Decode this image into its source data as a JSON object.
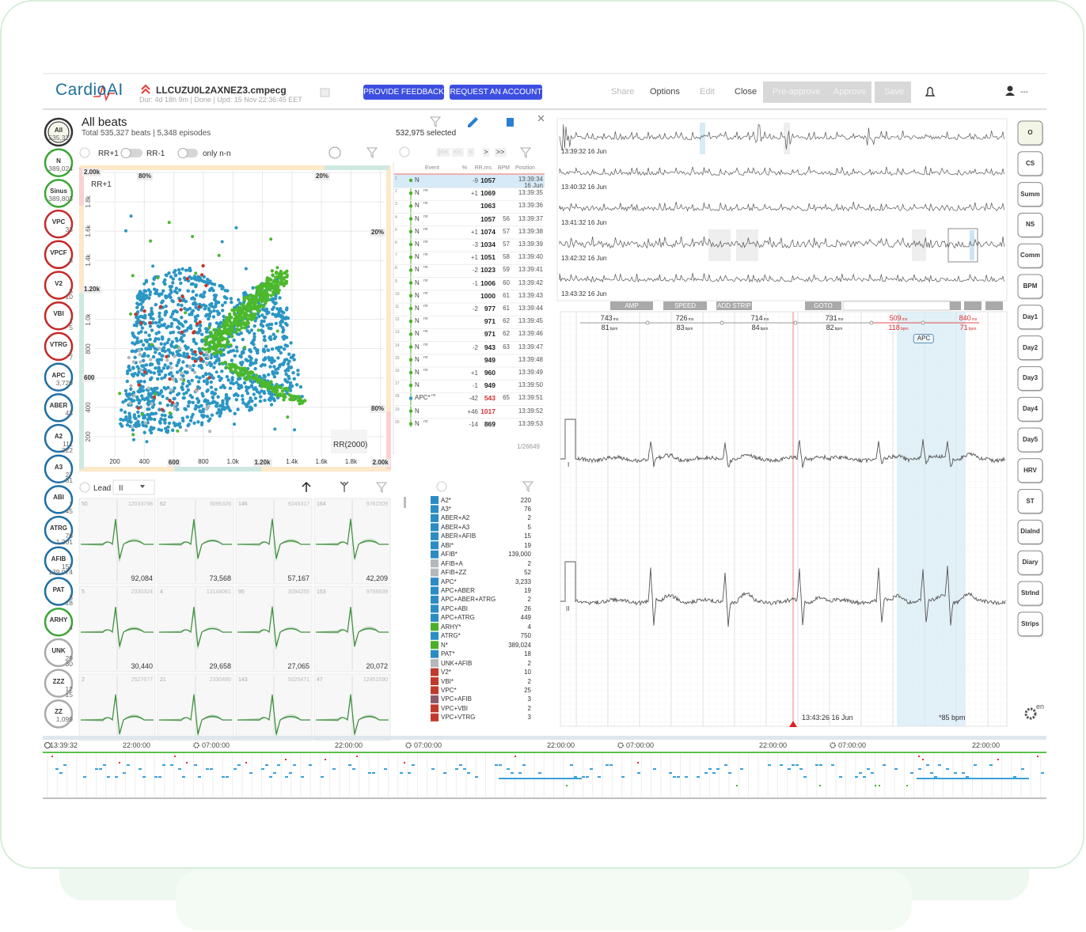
{
  "header": {
    "logo": "CardioAI",
    "file": "LLCUZU0L2AXNEZ3.cmpecg",
    "meta": "Dur: 4d 18h 9m  |  Done  |  Upd: 15 Nov 22:36:45 EET",
    "buttons": [
      "PROVIDE FEEDBACK",
      "REQUEST AN ACCOUNT"
    ],
    "menu": [
      {
        "text": "Share",
        "enabled": false
      },
      {
        "text": "Options",
        "enabled": true
      },
      {
        "text": "Edit",
        "enabled": false
      },
      {
        "text": "Close",
        "enabled": true
      }
    ],
    "approve": [
      "Pre-approve",
      "Approve",
      "Save"
    ],
    "user": "---"
  },
  "sidebar": [
    {
      "label": "All",
      "counts": [
        "535,327"
      ],
      "color": "#333333"
    },
    {
      "label": "N",
      "counts": [
        "389,024"
      ],
      "color": "#3aa635"
    },
    {
      "label": "Sinus",
      "counts": [
        "389,803"
      ],
      "color": "#3aa635"
    },
    {
      "label": "VPC",
      "counts": [
        "33"
      ],
      "color": "#c62828"
    },
    {
      "label": "VPCF",
      "counts": [
        "8"
      ],
      "color": "#c62828"
    },
    {
      "label": "V2",
      "counts": [
        "5",
        "10"
      ],
      "color": "#c62828"
    },
    {
      "label": "VBI",
      "counts": [
        "1",
        "5"
      ],
      "color": "#c62828"
    },
    {
      "label": "VTRG",
      "counts": [
        "1",
        "7"
      ],
      "color": "#c62828"
    },
    {
      "label": "APC",
      "counts": [
        "3,729"
      ],
      "color": "#1f6fa5"
    },
    {
      "label": "ABER",
      "counts": [
        "43"
      ],
      "color": "#1f6fa5"
    },
    {
      "label": "A2",
      "counts": [
        "111",
        "222"
      ],
      "color": "#1f6fa5"
    },
    {
      "label": "A3",
      "counts": [
        "27",
        "81"
      ],
      "color": "#1f6fa5"
    },
    {
      "label": "ABI",
      "counts": [
        "7",
        "45"
      ],
      "color": "#1f6fa5"
    },
    {
      "label": "ATRG",
      "counts": [
        "76",
        "1,201"
      ],
      "color": "#1f6fa5"
    },
    {
      "label": "AFIB",
      "counts": [
        "157",
        "139,074"
      ],
      "color": "#1f6fa5"
    },
    {
      "label": "PAT",
      "counts": [
        "3",
        "18"
      ],
      "color": "#1f6fa5"
    },
    {
      "label": "ARHY",
      "counts": [
        "4"
      ],
      "color": "#3aa635"
    },
    {
      "label": "UNK",
      "counts": [
        "29",
        "30"
      ],
      "color": "#aaaaaa"
    },
    {
      "label": "ZZZ",
      "counts": [
        "12",
        "15"
      ],
      "color": "#aaaaaa"
    },
    {
      "label": "ZZ",
      "counts": [
        "1,099"
      ],
      "color": "#aaaaaa"
    }
  ],
  "panel": {
    "title": "All beats",
    "summary": "Total 535,327 beats | 5,348 episodes",
    "selected": "532,975 selected",
    "toggles": [
      "RR+1",
      "RR-1",
      "only n-n"
    ]
  },
  "scatter": {
    "y_label": "RR+1",
    "x_label": "RR(2000)",
    "yticks": [
      "2.00k",
      "1.8k",
      "1.6k",
      "1.4k",
      "1.20k",
      "1.0k",
      "800",
      "600",
      "400",
      "200"
    ],
    "y_boxed": [
      0,
      4,
      7
    ],
    "xticks": [
      "200",
      "400",
      "600",
      "800",
      "1.0k",
      "1.20k",
      "1.4k",
      "1.6k",
      "1.8k",
      "2.00k"
    ],
    "x_boxed": [
      2,
      5,
      9
    ],
    "corner_labels": [
      "80%",
      "20%",
      "20%",
      "80%"
    ]
  },
  "beats": {
    "pager": [
      "|<<",
      "<<",
      "<",
      ">",
      ">>"
    ],
    "headers": [
      "Event",
      "%",
      "RR,ms",
      "BPM",
      "Position"
    ],
    "rows": [
      {
        "n": "1",
        "ev": "N",
        "d": "-9",
        "rr": "1057",
        "time": "13:39:34",
        "date": "16 Jun"
      },
      {
        "n": "2",
        "ev": "N",
        "tag": "nn",
        "d": "+1",
        "rr": "1069",
        "time": "13:39:35"
      },
      {
        "n": "3",
        "ev": "N",
        "tag": "nn",
        "rr": "1063",
        "time": "13:39:36"
      },
      {
        "n": "4",
        "ev": "N",
        "tag": "nn",
        "rr": "1057",
        "bpm": "56",
        "time": "13:39:37"
      },
      {
        "n": "5",
        "ev": "N",
        "tag": "nn",
        "d": "+1",
        "rr": "1074",
        "bpm": "57",
        "time": "13:39:38"
      },
      {
        "n": "6",
        "ev": "N",
        "tag": "nn",
        "d": "-3",
        "rr": "1034",
        "bpm": "57",
        "time": "13:39:39"
      },
      {
        "n": "7",
        "ev": "N",
        "tag": "nn",
        "d": "+1",
        "rr": "1051",
        "bpm": "58",
        "time": "13:39:40"
      },
      {
        "n": "8",
        "ev": "N",
        "tag": "nn",
        "d": "-2",
        "rr": "1023",
        "bpm": "59",
        "time": "13:39:41"
      },
      {
        "n": "9",
        "ev": "N",
        "tag": "nn",
        "d": "-1",
        "rr": "1006",
        "bpm": "60",
        "time": "13:39:42"
      },
      {
        "n": "10",
        "ev": "N",
        "tag": "nn",
        "rr": "1000",
        "bpm": "61",
        "time": "13:39:43"
      },
      {
        "n": "11",
        "ev": "N",
        "tag": "nn",
        "d": "-2",
        "rr": "977",
        "bpm": "61",
        "time": "13:39:44"
      },
      {
        "n": "12",
        "ev": "N",
        "tag": "nn",
        "rr": "971",
        "bpm": "62",
        "time": "13:39:45"
      },
      {
        "n": "13",
        "ev": "N",
        "tag": "nn",
        "rr": "971",
        "bpm": "62",
        "time": "13:39:46"
      },
      {
        "n": "14",
        "ev": "N",
        "tag": "nn",
        "d": "-2",
        "rr": "943",
        "bpm": "63",
        "time": "13:39:47"
      },
      {
        "n": "15",
        "ev": "N",
        "tag": "nn",
        "rr": "949",
        "time": "13:39:48"
      },
      {
        "n": "16",
        "ev": "N",
        "tag": "nn",
        "d": "+1",
        "rr": "960",
        "time": "13:39:49"
      },
      {
        "n": "17",
        "ev": "N",
        "d": "-1",
        "rr": "949",
        "time": "13:39:50"
      },
      {
        "n": "18",
        "ev": "APC*",
        "tag": "nn",
        "d": "-42",
        "rr": "543",
        "bpm": "65",
        "time": "13:39:51",
        "alert": true
      },
      {
        "n": "19",
        "ev": "N",
        "d": "+46",
        "rr": "1017",
        "time": "13:39:52",
        "alert": true
      },
      {
        "n": "20",
        "ev": "N",
        "tag": "nn",
        "d": "-14",
        "rr": "869",
        "time": "13:39:53"
      }
    ],
    "footer": "1/26649"
  },
  "templates": {
    "lead_label": "Lead",
    "lead": "II",
    "cells": [
      {
        "n": "50",
        "id": "12033798",
        "count": "92,084"
      },
      {
        "n": "62",
        "id": "3096326",
        "count": "73,568"
      },
      {
        "n": "146",
        "id": "9245317",
        "count": "57,167"
      },
      {
        "n": "164",
        "id": "9761509",
        "count": "42,209"
      },
      {
        "n": "5",
        "id": "2330324",
        "count": "30,440"
      },
      {
        "n": "4",
        "id": "13144061",
        "count": "29,658"
      },
      {
        "n": "95",
        "id": "3094255",
        "count": "27,065"
      },
      {
        "n": "153",
        "id": "9766639",
        "count": "20,072"
      },
      {
        "n": "2",
        "id": "2527677"
      },
      {
        "n": "21",
        "id": "2330480"
      },
      {
        "n": "143",
        "id": "5025471"
      },
      {
        "n": "47",
        "id": "12451590"
      }
    ]
  },
  "classes": [
    {
      "name": "A2*",
      "count": "220",
      "color": "#2b8cc4"
    },
    {
      "name": "A3*",
      "count": "76",
      "color": "#2b8cc4"
    },
    {
      "name": "ABER+A2",
      "count": "2",
      "color": "#2b8cc4"
    },
    {
      "name": "ABER+A3",
      "count": "5",
      "color": "#2b8cc4"
    },
    {
      "name": "ABER+AFIB",
      "count": "15",
      "color": "#2b8cc4"
    },
    {
      "name": "ABI*",
      "count": "19",
      "color": "#2b8cc4"
    },
    {
      "name": "AFIB*",
      "count": "139,000",
      "color": "#2b8cc4"
    },
    {
      "name": "AFIB+A",
      "count": "2",
      "color": "#b5b8bb"
    },
    {
      "name": "AFIB+ZZ",
      "count": "52",
      "color": "#b5b8bb"
    },
    {
      "name": "APC*",
      "count": "3,233",
      "color": "#2b8cc4"
    },
    {
      "name": "APC+ABER",
      "count": "19",
      "color": "#2b8cc4"
    },
    {
      "name": "APC+ABER+ATRG",
      "count": "2",
      "color": "#2b8cc4"
    },
    {
      "name": "APC+ABI",
      "count": "26",
      "color": "#2b8cc4"
    },
    {
      "name": "APC+ATRG",
      "count": "449",
      "color": "#2b8cc4"
    },
    {
      "name": "ARHY*",
      "count": "4",
      "color": "#4caf2a"
    },
    {
      "name": "ATRG*",
      "count": "750",
      "color": "#2b8cc4"
    },
    {
      "name": "N*",
      "count": "389,024",
      "color": "#4caf2a"
    },
    {
      "name": "PAT*",
      "count": "18",
      "color": "#2b8cc4"
    },
    {
      "name": "UNK+AFIB",
      "count": "2",
      "color": "#b5b8bb"
    },
    {
      "name": "V2*",
      "count": "10",
      "color": "#c0392b"
    },
    {
      "name": "VBI*",
      "count": "2",
      "color": "#c0392b"
    },
    {
      "name": "VPC*",
      "count": "25",
      "color": "#c0392b"
    },
    {
      "name": "VPC+AFIB",
      "count": "3",
      "color": "#8b5a6b"
    },
    {
      "name": "VPC+VBI",
      "count": "2",
      "color": "#c0392b"
    },
    {
      "name": "VPC+VTRG",
      "count": "3",
      "color": "#c0392b"
    }
  ],
  "strips": {
    "times": [
      "13:39:32 16 Jun",
      "13:40:32 16 Jun",
      "13:41:32 16 Jun",
      "13:42:32 16 Jun",
      "13:43:32 16 Jun"
    ],
    "toolbar": [
      "AMP",
      "SPEED",
      "ADD STRIP",
      "GOTO"
    ],
    "unit_ms": "ms",
    "unit_bpm": "bpm",
    "intervals": [
      {
        "ms": "743",
        "bpm": "81"
      },
      {
        "ms": "726",
        "bpm": "83"
      },
      {
        "ms": "714",
        "bpm": "84"
      },
      {
        "ms": "731",
        "bpm": "82"
      },
      {
        "ms": "509",
        "bpm": "118",
        "alert": true
      },
      {
        "ms": "840",
        "bpm": "71",
        "alert": true
      }
    ],
    "tag": "APC",
    "leads": [
      "I",
      "II"
    ],
    "cursor_time": "13:43:26 16 Jun",
    "rate": "*85 bpm"
  },
  "right_buttons": [
    "O",
    "CS",
    "Summ",
    "NS",
    "Comm",
    "BPM",
    "Day1",
    "Day2",
    "Day3",
    "Day4",
    "Day5",
    "HRV",
    "ST",
    "DiaInd",
    "Diary",
    "StrInd",
    "Strips"
  ],
  "lang": "en",
  "timeline": [
    {
      "t": "13:39:32",
      "icon": "clock"
    },
    {
      "t": "22:00:00",
      "icon": "moon"
    },
    {
      "t": "07:00:00",
      "icon": "sun"
    },
    {
      "t": "22:00:00",
      "icon": "moon"
    },
    {
      "t": "07:00:00",
      "icon": "sun"
    },
    {
      "t": "22:00:00",
      "icon": "moon"
    },
    {
      "t": "07:00:00",
      "icon": "sun"
    },
    {
      "t": "22:00:00",
      "icon": "moon"
    },
    {
      "t": "07:00:00",
      "icon": "sun"
    },
    {
      "t": "22:00:00",
      "icon": "moon"
    }
  ]
}
